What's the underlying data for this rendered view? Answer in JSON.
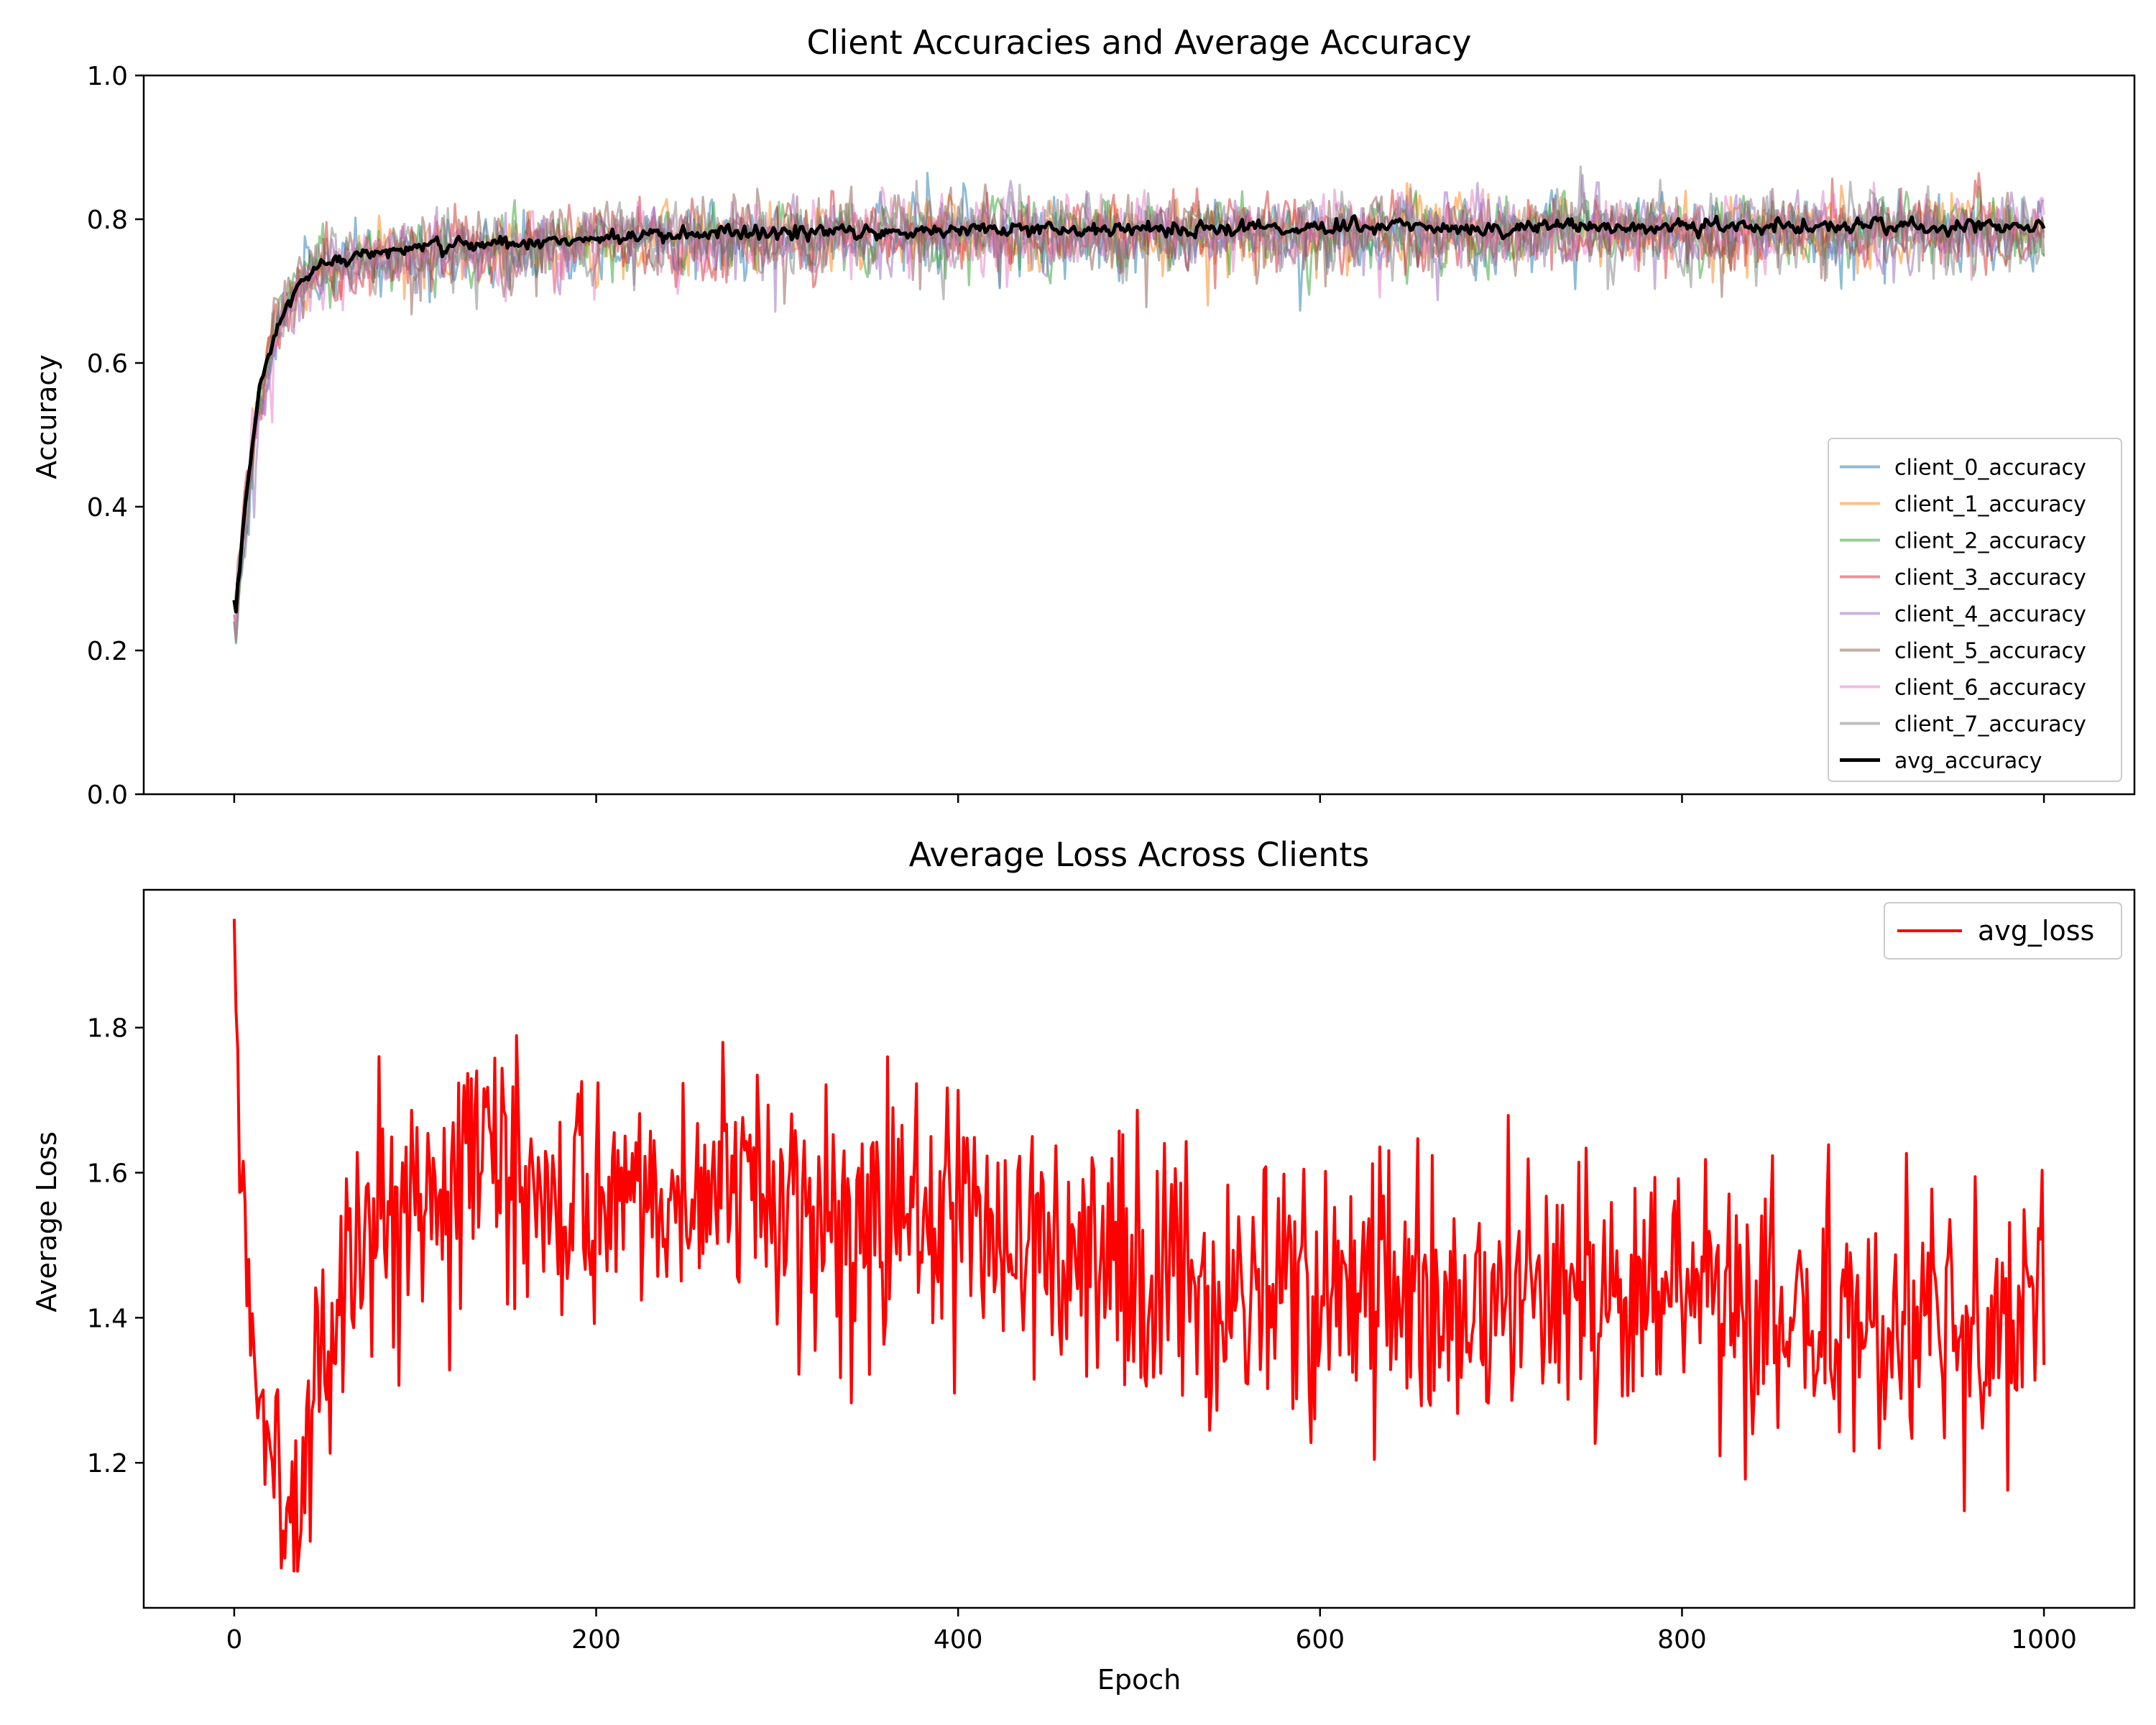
{
  "chart_data": [
    {
      "type": "line",
      "title": "Client Accuracies and Average Accuracy",
      "xlabel": "",
      "ylabel": "Accuracy",
      "xlim": [
        -50,
        1050
      ],
      "ylim": [
        0.0,
        1.0
      ],
      "xticks": [
        0,
        200,
        400,
        600,
        800,
        1000
      ],
      "show_xtick_labels": false,
      "yticks": [
        0.0,
        0.2,
        0.4,
        0.6,
        0.8,
        1.0
      ],
      "ytick_labels": [
        "0.0",
        "0.2",
        "0.4",
        "0.6",
        "0.8",
        "1.0"
      ],
      "grid": false,
      "legend_position": "lower right",
      "epochs": 1000,
      "series": [
        {
          "name": "client_0_accuracy",
          "color": "#1f77b4",
          "opacity": 0.5,
          "start": 0.24,
          "final": 0.785,
          "spread": 0.035,
          "seed": 11
        },
        {
          "name": "client_1_accuracy",
          "color": "#ff7f0e",
          "opacity": 0.5,
          "start": 0.25,
          "final": 0.785,
          "spread": 0.035,
          "seed": 23
        },
        {
          "name": "client_2_accuracy",
          "color": "#2ca02c",
          "opacity": 0.5,
          "start": 0.26,
          "final": 0.785,
          "spread": 0.035,
          "seed": 37
        },
        {
          "name": "client_3_accuracy",
          "color": "#d62728",
          "opacity": 0.5,
          "start": 0.27,
          "final": 0.785,
          "spread": 0.035,
          "seed": 41
        },
        {
          "name": "client_4_accuracy",
          "color": "#9467bd",
          "opacity": 0.5,
          "start": 0.25,
          "final": 0.785,
          "spread": 0.035,
          "seed": 53
        },
        {
          "name": "client_5_accuracy",
          "color": "#8c564b",
          "opacity": 0.5,
          "start": 0.26,
          "final": 0.785,
          "spread": 0.035,
          "seed": 67
        },
        {
          "name": "client_6_accuracy",
          "color": "#e377c2",
          "opacity": 0.5,
          "start": 0.25,
          "final": 0.785,
          "spread": 0.035,
          "seed": 71
        },
        {
          "name": "client_7_accuracy",
          "color": "#7f7f7f",
          "opacity": 0.5,
          "start": 0.24,
          "final": 0.785,
          "spread": 0.035,
          "seed": 89
        },
        {
          "name": "avg_accuracy",
          "color": "#000000",
          "opacity": 1.0,
          "start": 0.27,
          "final": 0.79,
          "spread": 0.008,
          "seed": 97
        }
      ]
    },
    {
      "type": "line",
      "title": "Average Loss Across Clients",
      "xlabel": "Epoch",
      "ylabel": "Average Loss",
      "xlim": [
        -50,
        1050
      ],
      "ylim": [
        1.0,
        1.99
      ],
      "xticks": [
        0,
        200,
        400,
        600,
        800,
        1000
      ],
      "xtick_labels": [
        "0",
        "200",
        "400",
        "600",
        "800",
        "1000"
      ],
      "yticks": [
        1.2,
        1.4,
        1.6,
        1.8
      ],
      "ytick_labels": [
        "1.2",
        "1.4",
        "1.6",
        "1.8"
      ],
      "grid": false,
      "legend_position": "upper right",
      "series": [
        {
          "name": "avg_loss",
          "color": "#ff0000",
          "trend_x": [
            0,
            3,
            8,
            15,
            25,
            30,
            40,
            55,
            80,
            120,
            150,
            200,
            250,
            300,
            350,
            400,
            450,
            500,
            550,
            600,
            650,
            700,
            750,
            800,
            850,
            900,
            950,
            1000
          ],
          "trend_y": [
            1.95,
            1.6,
            1.42,
            1.28,
            1.2,
            1.17,
            1.25,
            1.4,
            1.55,
            1.62,
            1.6,
            1.58,
            1.57,
            1.56,
            1.54,
            1.52,
            1.5,
            1.47,
            1.45,
            1.44,
            1.43,
            1.42,
            1.42,
            1.41,
            1.4,
            1.39,
            1.39,
            1.39
          ],
          "noise_amplitude": 0.09,
          "seed": 5
        }
      ]
    }
  ]
}
